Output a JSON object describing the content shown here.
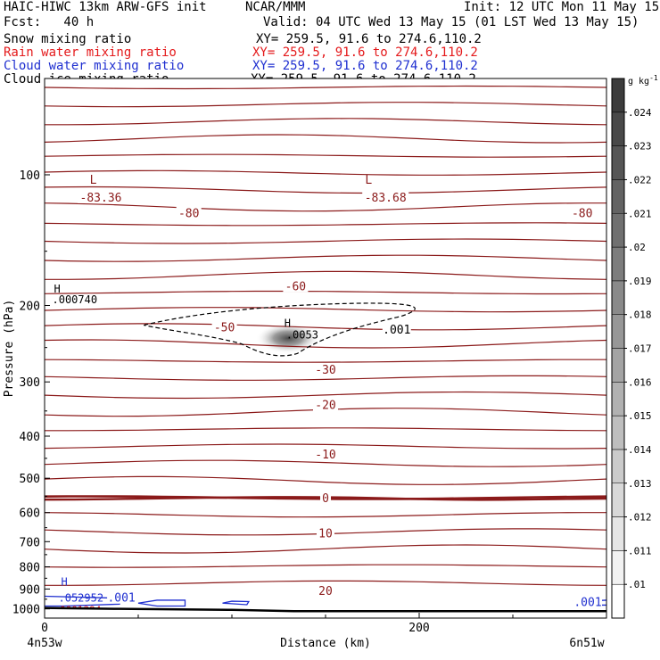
{
  "header": {
    "model": "HAIC-HIWC 13km ARW-GFS init",
    "org": "NCAR/MMM",
    "init": "Init: 12 UTC Mon 11 May 15",
    "fcst": "Fcst:   40 h",
    "valid": "Valid: 04 UTC Wed 13 May 15 (01 LST Wed 13 May 15)"
  },
  "fields": [
    {
      "name": "Snow mixing ratio",
      "xy": "XY= 259.5, 91.6 to 274.6,110.2",
      "color": "#000000"
    },
    {
      "name": "Rain water mixing ratio",
      "xy": "XY= 259.5, 91.6 to 274.6,110.2",
      "color": "#e41a1c"
    },
    {
      "name": "Cloud water mixing ratio",
      "xy": "XY= 259.5, 91.6 to 274.6,110.2",
      "color": "#1f2fd0"
    },
    {
      "name": "Cloud ice mixing ratio",
      "xy": "XY= 259.5, 91.6 to 274.6,110.2",
      "color": "#000000"
    }
  ],
  "chart_data": {
    "type": "contour cross-section",
    "xlabel": "Distance (km)",
    "ylabel": "Pressure (hPa)",
    "xlim": [
      0,
      300
    ],
    "x_ticks": [
      "0",
      "200"
    ],
    "x_end_labels": [
      "4n53w",
      "6n51w"
    ],
    "y_log_scale": true,
    "ylim": [
      1050,
      60
    ],
    "y_ticks": [
      100,
      200,
      300,
      400,
      500,
      600,
      700,
      800,
      900,
      1000
    ],
    "temperature_contours_degC": {
      "color": "#8b1a1a",
      "levels": [
        -80,
        -70,
        -60,
        -50,
        -45,
        -40,
        -35,
        -30,
        -25,
        -20,
        -15,
        -10,
        -5,
        0,
        5,
        10,
        15,
        20,
        25,
        30
      ],
      "labels": [
        {
          "text": "-83.36",
          "x": 30,
          "p": 113
        },
        {
          "text": "-80",
          "x": 77,
          "p": 123
        },
        {
          "text": "-83.68",
          "x": 182,
          "p": 113
        },
        {
          "text": "-80",
          "x": 287,
          "p": 123
        },
        {
          "text": "-60",
          "x": 134,
          "p": 181
        },
        {
          "text": "-50",
          "x": 96,
          "p": 225
        },
        {
          "text": "-30",
          "x": 150,
          "p": 282
        },
        {
          "text": "-20",
          "x": 150,
          "p": 340
        },
        {
          "text": "-10",
          "x": 150,
          "p": 442
        },
        {
          "text": "0",
          "x": 150,
          "p": 557
        },
        {
          "text": "10",
          "x": 150,
          "p": 671
        },
        {
          "text": "20",
          "x": 150,
          "p": 910
        }
      ],
      "extrema": [
        {
          "text": "L",
          "x": 26,
          "p": 103
        },
        {
          "text": "L",
          "x": 173,
          "p": 103
        }
      ]
    },
    "cloud_ice_contours": {
      "color": "#000000",
      "style": "dashed",
      "levels": [
        0.001
      ],
      "labels": [
        {
          "text": ".001",
          "x": 188,
          "p": 228
        }
      ],
      "max": {
        "text": "H",
        "value": ".000740",
        "x": 5,
        "p": 196
      }
    },
    "cloud_water_contours": {
      "color": "#1f2fd0",
      "levels": [
        0.001
      ],
      "labels": [
        {
          "text": ".001",
          "x": 41,
          "p": 945
        },
        {
          "text": ".001",
          "x": 290,
          "p": 967
        }
      ],
      "max": {
        "text": "H",
        "value": ".052952",
        "x": 5,
        "p": 952
      }
    },
    "rain_water": {
      "color": "#e41a1c",
      "max": {
        "value": ".0001394",
        "x": 4,
        "p": 995
      }
    },
    "snow_shading": {
      "max": {
        "text": "H",
        "value": ".0053",
        "x": 128,
        "p": 235
      },
      "center": {
        "x": 130,
        "p": 238
      }
    },
    "shading_legend": {
      "unit": "g kg",
      "unit_exp": "-1",
      "levels": [
        ".01",
        ".011",
        ".012",
        ".013",
        ".014",
        ".015",
        ".016",
        ".017",
        ".018",
        ".019",
        ".02",
        ".021",
        ".022",
        ".023",
        ".024"
      ]
    }
  }
}
